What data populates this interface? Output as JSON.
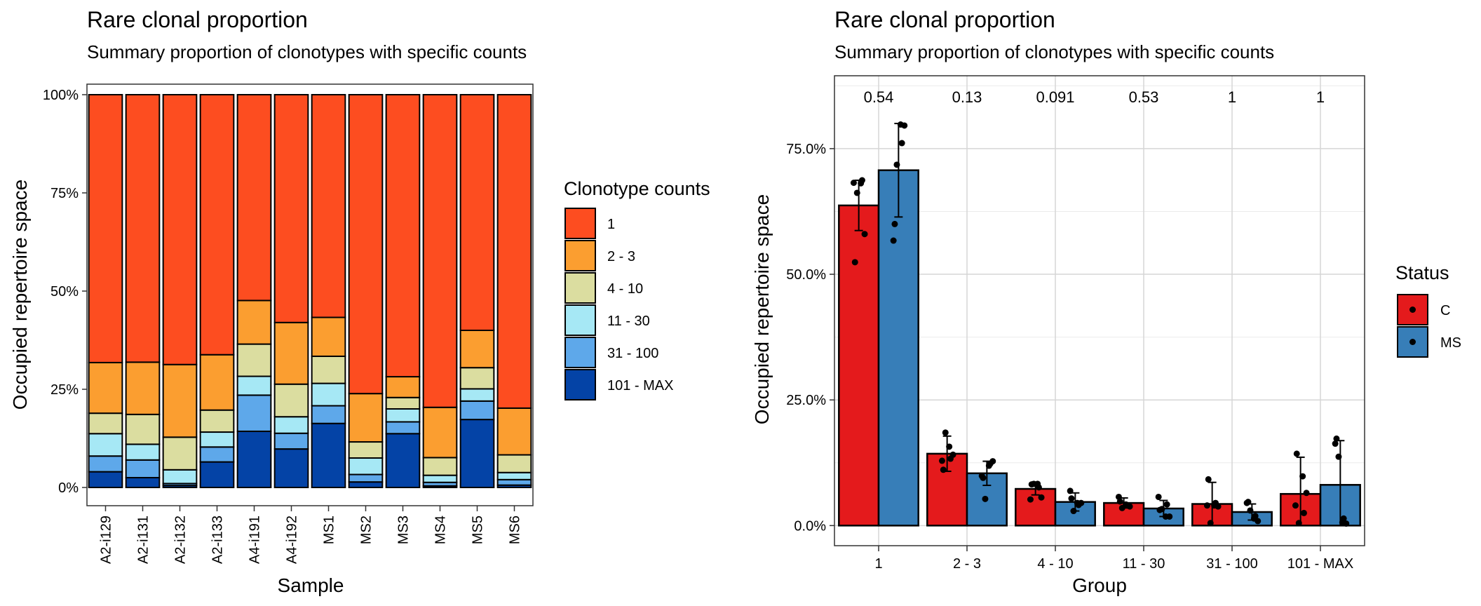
{
  "chart_data": [
    {
      "type": "bar",
      "stacked": true,
      "title": "Rare clonal proportion",
      "subtitle": "Summary proportion of clonotypes with specific counts",
      "xlabel": "Sample",
      "ylabel": "Occupied repertoire space",
      "ylim": [
        0,
        1
      ],
      "yticks": [
        "0%",
        "25%",
        "50%",
        "75%",
        "100%"
      ],
      "grid": false,
      "legend": {
        "title": "Clonotype counts",
        "position": "right"
      },
      "categories": [
        "A2-i129",
        "A2-i131",
        "A2-i132",
        "A2-i133",
        "A4-i191",
        "A4-i192",
        "MS1",
        "MS2",
        "MS3",
        "MS4",
        "MS5",
        "MS6"
      ],
      "series": [
        {
          "name": "101 - MAX",
          "color": "#0443A6",
          "values": [
            0.04,
            0.025,
            0.005,
            0.065,
            0.143,
            0.098,
            0.163,
            0.014,
            0.137,
            0.004,
            0.173,
            0.006
          ]
        },
        {
          "name": "31 - 100",
          "color": "#5EA8EA",
          "values": [
            0.04,
            0.045,
            0.005,
            0.038,
            0.092,
            0.04,
            0.045,
            0.019,
            0.03,
            0.009,
            0.047,
            0.014
          ]
        },
        {
          "name": "11 - 30",
          "color": "#A6E8F5",
          "values": [
            0.057,
            0.04,
            0.035,
            0.038,
            0.048,
            0.042,
            0.057,
            0.042,
            0.033,
            0.018,
            0.031,
            0.018
          ]
        },
        {
          "name": "4 - 10",
          "color": "#DBDDA0",
          "values": [
            0.052,
            0.076,
            0.083,
            0.056,
            0.082,
            0.083,
            0.069,
            0.041,
            0.029,
            0.045,
            0.054,
            0.045
          ]
        },
        {
          "name": "2 - 3",
          "color": "#FB9E30",
          "values": [
            0.129,
            0.133,
            0.185,
            0.141,
            0.111,
            0.157,
            0.099,
            0.123,
            0.053,
            0.128,
            0.095,
            0.119
          ]
        },
        {
          "name": "1",
          "color": "#FD4D20",
          "values": [
            0.682,
            0.681,
            0.687,
            0.662,
            0.524,
            0.58,
            0.567,
            0.761,
            0.718,
            0.796,
            0.6,
            0.798
          ]
        }
      ]
    },
    {
      "type": "bar",
      "grouped": true,
      "title": "Rare clonal proportion",
      "subtitle": "Summary proportion of clonotypes with specific counts",
      "xlabel": "Group",
      "ylabel": "Occupied repertoire space",
      "ylim": [
        -0.04,
        0.895
      ],
      "yticks": [
        "0.0%",
        "25.0%",
        "50.0%",
        "75.0%"
      ],
      "grid": true,
      "legend": {
        "title": "Status",
        "position": "right"
      },
      "categories": [
        "1",
        "2 - 3",
        "4 - 10",
        "11 - 30",
        "31 - 100",
        "101 - MAX"
      ],
      "pvalues": [
        "0.54",
        "0.13",
        "0.091",
        "0.53",
        "1",
        "1"
      ],
      "series": [
        {
          "name": "C",
          "color": "#E41A1C",
          "values": [
            0.637,
            0.143,
            0.073,
            0.045,
            0.043,
            0.063
          ],
          "err": [
            0.05,
            0.035,
            0.012,
            0.01,
            0.043,
            0.073
          ],
          "points": [
            [
              0.682,
              0.687,
              0.662,
              0.58,
              0.524,
              0.681
            ],
            [
              0.129,
              0.133,
              0.185,
              0.141,
              0.111,
              0.157
            ],
            [
              0.052,
              0.076,
              0.083,
              0.056,
              0.082,
              0.083
            ],
            [
              0.057,
              0.04,
              0.035,
              0.038,
              0.048,
              0.042
            ],
            [
              0.04,
              0.045,
              0.005,
              0.038,
              0.092,
              0.04
            ],
            [
              0.04,
              0.025,
              0.005,
              0.065,
              0.143,
              0.098
            ]
          ]
        },
        {
          "name": "MS",
          "color": "#377EB8",
          "values": [
            0.707,
            0.104,
            0.047,
            0.034,
            0.027,
            0.081
          ],
          "err": [
            0.093,
            0.024,
            0.018,
            0.016,
            0.016,
            0.088
          ],
          "points": [
            [
              0.567,
              0.761,
              0.718,
              0.796,
              0.6,
              0.798
            ],
            [
              0.099,
              0.123,
              0.053,
              0.128,
              0.095,
              0.119
            ],
            [
              0.069,
              0.041,
              0.029,
              0.045,
              0.054,
              0.045
            ],
            [
              0.057,
              0.042,
              0.033,
              0.018,
              0.031,
              0.018
            ],
            [
              0.045,
              0.019,
              0.03,
              0.009,
              0.047,
              0.014
            ],
            [
              0.163,
              0.014,
              0.137,
              0.004,
              0.173,
              0.006
            ]
          ]
        }
      ]
    }
  ]
}
